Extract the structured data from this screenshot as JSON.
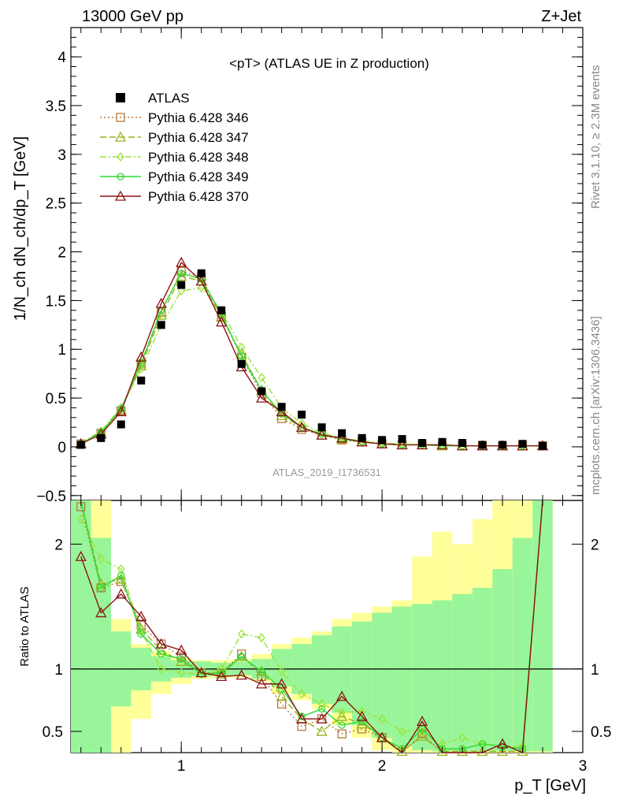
{
  "header": {
    "energy_label": "13000 GeV pp",
    "process_label": "Z+Jet"
  },
  "side": {
    "rivet_label": "Rivet 3.1.10, ≥ 2.3M events",
    "mcplots_label": "mcplots.cern.ch [arXiv:1306.3436]"
  },
  "chart_data": {
    "type": "line",
    "title": "<pT> (ATLAS UE in Z production)",
    "analysis_id": "ATLAS_2019_I1736531",
    "ylabel": "1/N_ch dN_ch/dp_T [GeV]",
    "xlabel": "p_T [GeV]",
    "ratio_ylabel": "Ratio to ATLAS",
    "xlim": [
      0.45,
      3.0
    ],
    "ylim": [
      -0.55,
      4.3
    ],
    "ratio_ylim": [
      0.33,
      2.35
    ],
    "x_ticks": [
      "1",
      "2",
      "3"
    ],
    "y_ticks": [
      "−0.5",
      "0",
      "0.5",
      "1",
      "1.5",
      "2",
      "2.5",
      "3",
      "3.5",
      "4"
    ],
    "ratio_ticks_left": [
      "0.5",
      "1",
      "2"
    ],
    "ratio_ticks_right": [
      "0.5",
      "1",
      "2"
    ],
    "legend_position": "top-left",
    "x": [
      0.5,
      0.6,
      0.7,
      0.8,
      0.9,
      1.0,
      1.1,
      1.2,
      1.3,
      1.4,
      1.5,
      1.6,
      1.7,
      1.8,
      1.9,
      2.0,
      2.1,
      2.2,
      2.3,
      2.4,
      2.5,
      2.6,
      2.7,
      2.8
    ],
    "data": {
      "name": "ATLAS",
      "values": [
        0.02,
        0.09,
        0.23,
        0.68,
        1.25,
        1.66,
        1.78,
        1.4,
        0.85,
        0.57,
        0.41,
        0.33,
        0.2,
        0.14,
        0.09,
        0.07,
        0.08,
        0.04,
        0.05,
        0.04,
        0.02,
        0.02,
        0.03,
        0.01
      ]
    },
    "series": [
      {
        "name": "Pythia 6.428 346",
        "color": "#b5793d",
        "dash": "2,3",
        "marker": "square",
        "values": [
          0.03,
          0.14,
          0.37,
          0.85,
          1.38,
          1.8,
          1.74,
          1.34,
          0.92,
          0.55,
          0.29,
          0.18,
          0.12,
          0.07,
          0.05,
          0.03,
          0.02,
          0.02,
          0.01,
          0.01,
          0.01,
          0.01,
          0.01,
          0.01
        ]
      },
      {
        "name": "Pythia 6.428 347",
        "color": "#99b21a",
        "dash": "8,4",
        "marker": "triangle",
        "values": [
          0.03,
          0.15,
          0.38,
          0.83,
          1.35,
          1.75,
          1.7,
          1.33,
          0.95,
          0.58,
          0.32,
          0.2,
          0.12,
          0.08,
          0.05,
          0.03,
          0.02,
          0.02,
          0.01,
          0.01,
          0.01,
          0.01,
          0.01,
          0.01
        ]
      },
      {
        "name": "Pythia 6.428 348",
        "color": "#9be33a",
        "dash": "8,3,2,3",
        "marker": "diamond",
        "values": [
          0.04,
          0.16,
          0.4,
          0.8,
          1.25,
          1.6,
          1.63,
          1.4,
          1.02,
          0.71,
          0.4,
          0.24,
          0.14,
          0.09,
          0.06,
          0.04,
          0.03,
          0.02,
          0.02,
          0.01,
          0.01,
          0.01,
          0.01,
          0.01
        ]
      },
      {
        "name": "Pythia 6.428 349",
        "color": "#2fd92f",
        "dash": "",
        "marker": "circle",
        "values": [
          0.03,
          0.15,
          0.39,
          0.86,
          1.4,
          1.78,
          1.72,
          1.36,
          0.93,
          0.58,
          0.34,
          0.2,
          0.13,
          0.08,
          0.05,
          0.03,
          0.02,
          0.02,
          0.01,
          0.01,
          0.01,
          0.01,
          0.01,
          0.01
        ]
      },
      {
        "name": "Pythia 6.428 370",
        "color": "#8a1414",
        "dash": "",
        "marker": "triangle",
        "values": [
          0.03,
          0.13,
          0.36,
          0.92,
          1.47,
          1.89,
          1.7,
          1.28,
          0.82,
          0.5,
          0.36,
          0.2,
          0.12,
          0.09,
          0.05,
          0.03,
          0.02,
          0.02,
          0.02,
          0.01,
          0.01,
          0.01,
          0.01,
          0.01
        ]
      }
    ],
    "ratio": {
      "reference_line": 1,
      "bands": {
        "stat_low": [
          0.33,
          0.33,
          0.7,
          0.83,
          0.9,
          0.93,
          0.94,
          0.95,
          0.95,
          0.92,
          0.86,
          0.8,
          0.72,
          0.65,
          0.55,
          0.45,
          0.38,
          0.35,
          0.34,
          0.34,
          0.34,
          0.34,
          0.34,
          0.34
        ],
        "stat_high": [
          2.35,
          2.05,
          1.3,
          1.17,
          1.1,
          1.07,
          1.06,
          1.05,
          1.06,
          1.08,
          1.16,
          1.2,
          1.27,
          1.34,
          1.38,
          1.45,
          1.5,
          1.52,
          1.55,
          1.6,
          1.65,
          1.8,
          2.05,
          2.35
        ],
        "syst_low": [
          0.33,
          0.33,
          0.33,
          0.6,
          0.8,
          0.88,
          0.92,
          0.93,
          0.93,
          0.9,
          0.8,
          0.75,
          0.68,
          0.55,
          0.45,
          0.35,
          0.33,
          0.33,
          0.33,
          0.33,
          0.33,
          0.33,
          0.33,
          0.33
        ],
        "syst_high": [
          2.35,
          2.35,
          1.4,
          1.2,
          1.14,
          1.09,
          1.07,
          1.07,
          1.08,
          1.12,
          1.2,
          1.25,
          1.3,
          1.4,
          1.45,
          1.5,
          1.55,
          1.9,
          2.1,
          2.0,
          2.2,
          2.35,
          2.35,
          2.35
        ]
      },
      "series_values": [
        [
          2.3,
          1.65,
          1.7,
          1.35,
          1.2,
          1.1,
          0.97,
          0.97,
          1.12,
          0.94,
          0.72,
          0.54,
          0.6,
          0.48,
          0.52,
          0.45,
          0.32,
          0.48,
          0.32,
          0.32,
          0.32,
          0.32,
          0.32,
          2.4
        ],
        [
          2.4,
          1.68,
          1.72,
          1.32,
          1.15,
          1.06,
          0.97,
          0.96,
          1.1,
          0.98,
          0.78,
          0.6,
          0.5,
          0.62,
          0.56,
          0.45,
          0.34,
          0.46,
          0.34,
          0.34,
          0.34,
          0.34,
          0.34,
          2.4
        ],
        [
          2.2,
          1.88,
          1.8,
          1.3,
          1.0,
          0.97,
          0.96,
          1.0,
          1.28,
          1.25,
          0.98,
          0.8,
          0.72,
          0.65,
          0.66,
          0.6,
          0.5,
          0.5,
          0.4,
          0.45,
          0.4,
          0.38,
          0.38,
          2.4
        ],
        [
          2.4,
          1.65,
          1.75,
          1.28,
          1.12,
          1.08,
          0.96,
          0.97,
          1.1,
          0.98,
          0.84,
          0.62,
          0.68,
          0.55,
          0.58,
          0.45,
          0.36,
          0.52,
          0.36,
          0.36,
          0.4,
          0.38,
          0.36,
          2.4
        ],
        [
          1.9,
          1.45,
          1.6,
          1.42,
          1.2,
          1.15,
          0.97,
          0.94,
          0.95,
          0.88,
          0.88,
          0.6,
          0.6,
          0.78,
          0.62,
          0.45,
          0.33,
          0.58,
          0.33,
          0.33,
          0.33,
          0.4,
          0.33,
          2.4
        ]
      ]
    }
  }
}
